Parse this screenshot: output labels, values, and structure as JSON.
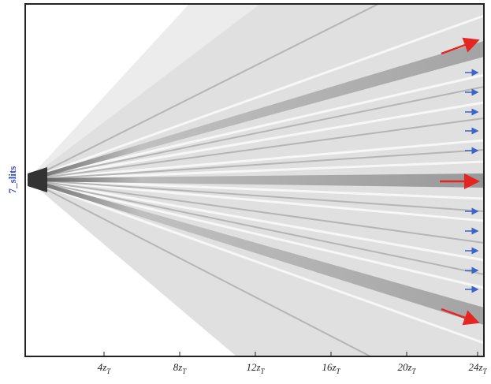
{
  "figure": {
    "side_label": "7_slits",
    "xticks": [
      {
        "main": "4z",
        "sub": "T"
      },
      {
        "main": "8z",
        "sub": "T"
      },
      {
        "main": "12z",
        "sub": "T"
      },
      {
        "main": "16z",
        "sub": "T"
      },
      {
        "main": "20z",
        "sub": "T"
      },
      {
        "main": "24z",
        "sub": "T"
      }
    ]
  }
}
